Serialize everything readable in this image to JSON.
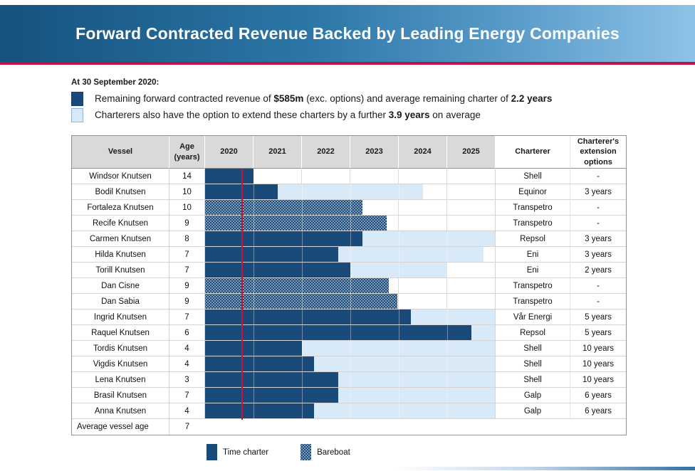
{
  "banner": {
    "title": "Forward Contracted Revenue Backed by Leading Energy Companies",
    "colors": {
      "gradient_left": "#15527d",
      "gradient_right": "#8fc2e6",
      "underline": "#c01240"
    }
  },
  "context": {
    "heading": "At 30 September 2020:",
    "lines": [
      {
        "swatch": "time_charter",
        "parts": [
          {
            "text": "Remaining forward contracted revenue of ",
            "bold": false
          },
          {
            "text": "$585m",
            "bold": true
          },
          {
            "text": " (exc. options) and average remaining charter of ",
            "bold": false
          },
          {
            "text": "2.2 years",
            "bold": true
          }
        ]
      },
      {
        "swatch": "extension",
        "parts": [
          {
            "text": "Charterers also have the option to extend these charters by a further ",
            "bold": false
          },
          {
            "text": "3.9 years",
            "bold": true
          },
          {
            "text": " on average",
            "bold": false
          }
        ]
      }
    ]
  },
  "chart_data": {
    "type": "gantt",
    "title": "Forward Contracted Revenue Backed by Leading Energy Companies",
    "x_axis": {
      "start": 2020,
      "end": 2026,
      "tick_labels": [
        "2020",
        "2021",
        "2022",
        "2023",
        "2024",
        "2025"
      ],
      "grid": true
    },
    "today_marker": {
      "position": 2020.75
    },
    "columns": {
      "vessel": "Vessel",
      "age": "Age\n(years)",
      "charterer": "Charterer",
      "extension": "Charterer's\nextension options"
    },
    "rows": [
      {
        "vessel": "Windsor Knutsen",
        "age": 14,
        "contract": "time_charter",
        "charter_start": 2020,
        "charter_end": 2021.0,
        "option_end": null,
        "charterer": "Shell",
        "extension": "-"
      },
      {
        "vessel": "Bodil Knutsen",
        "age": 10,
        "contract": "time_charter",
        "charter_start": 2020,
        "charter_end": 2021.5,
        "option_end": 2024.5,
        "charterer": "Equinor",
        "extension": "3 years"
      },
      {
        "vessel": "Fortaleza Knutsen",
        "age": 10,
        "contract": "bareboat",
        "charter_start": 2020,
        "charter_end": 2023.25,
        "option_end": null,
        "charterer": "Transpetro",
        "extension": "-"
      },
      {
        "vessel": "Recife Knutsen",
        "age": 9,
        "contract": "bareboat",
        "charter_start": 2020,
        "charter_end": 2023.75,
        "option_end": null,
        "charterer": "Transpetro",
        "extension": "-"
      },
      {
        "vessel": "Carmen Knutsen",
        "age": 8,
        "contract": "time_charter",
        "charter_start": 2020,
        "charter_end": 2023.25,
        "option_end": 2026.0,
        "charterer": "Repsol",
        "extension": "3 years"
      },
      {
        "vessel": "Hilda Knutsen",
        "age": 7,
        "contract": "time_charter",
        "charter_start": 2020,
        "charter_end": 2022.75,
        "option_end": 2025.75,
        "charterer": "Eni",
        "extension": "3 years"
      },
      {
        "vessel": "Torill Knutsen",
        "age": 7,
        "contract": "time_charter",
        "charter_start": 2020,
        "charter_end": 2023.0,
        "option_end": 2025.0,
        "charterer": "Eni",
        "extension": "2 years"
      },
      {
        "vessel": "Dan Cisne",
        "age": 9,
        "contract": "bareboat",
        "charter_start": 2020,
        "charter_end": 2023.8,
        "option_end": null,
        "charterer": "Transpetro",
        "extension": "-"
      },
      {
        "vessel": "Dan Sabia",
        "age": 9,
        "contract": "bareboat",
        "charter_start": 2020,
        "charter_end": 2023.97,
        "option_end": null,
        "charterer": "Transpetro",
        "extension": "-"
      },
      {
        "vessel": "Ingrid Knutsen",
        "age": 7,
        "contract": "time_charter",
        "charter_start": 2020,
        "charter_end": 2024.25,
        "option_end": 2026.0,
        "charterer": "Vår Energi",
        "extension": "5 years"
      },
      {
        "vessel": "Raquel Knutsen",
        "age": 6,
        "contract": "time_charter",
        "charter_start": 2020,
        "charter_end": 2025.5,
        "option_end": 2026.0,
        "charterer": "Repsol",
        "extension": "5 years"
      },
      {
        "vessel": "Tordis Knutsen",
        "age": 4,
        "contract": "time_charter",
        "charter_start": 2020,
        "charter_end": 2022.0,
        "option_end": 2026.0,
        "charterer": "Shell",
        "extension": "10 years"
      },
      {
        "vessel": "Vigdis Knutsen",
        "age": 4,
        "contract": "time_charter",
        "charter_start": 2020,
        "charter_end": 2022.25,
        "option_end": 2026.0,
        "charterer": "Shell",
        "extension": "10 years"
      },
      {
        "vessel": "Lena Knutsen",
        "age": 3,
        "contract": "time_charter",
        "charter_start": 2020,
        "charter_end": 2022.75,
        "option_end": 2026.0,
        "charterer": "Shell",
        "extension": "10 years"
      },
      {
        "vessel": "Brasil Knutsen",
        "age": 7,
        "contract": "time_charter",
        "charter_start": 2020,
        "charter_end": 2022.75,
        "option_end": 2026.0,
        "charterer": "Galp",
        "extension": "6 years"
      },
      {
        "vessel": "Anna Knutsen",
        "age": 4,
        "contract": "time_charter",
        "charter_start": 2020,
        "charter_end": 2022.25,
        "option_end": 2026.0,
        "charterer": "Galp",
        "extension": "6 years"
      }
    ],
    "footer": {
      "label": "Average vessel age",
      "value": 7
    },
    "legend": [
      {
        "key": "time_charter",
        "label": "Time charter"
      },
      {
        "key": "bareboat",
        "label": "Bareboat"
      }
    ],
    "legend_position": "bottom",
    "colors": {
      "time_charter": "#194a7a",
      "bareboat": "#194a7a",
      "extension_option": "#d8e9f8",
      "header_bg": "#d9d9d9",
      "today_marker": "#cf1134"
    }
  }
}
